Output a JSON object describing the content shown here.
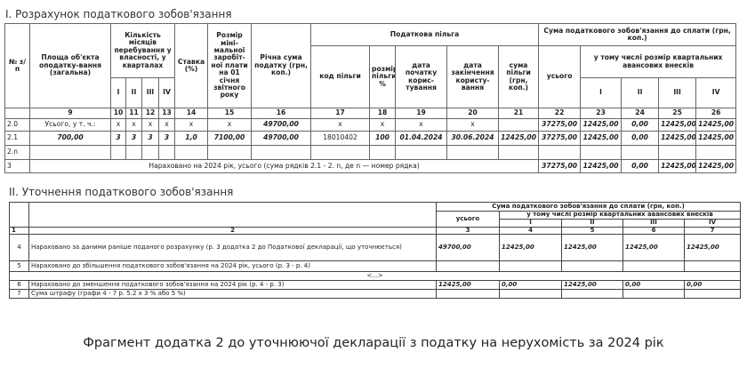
{
  "section1": {
    "title": "I. Розрахунок податкового зобов'язання",
    "headers": {
      "num": "№ з/п",
      "area": "Площа об'єкта оподатку-вання (загальна)",
      "months": "Кількість місяців перебування у власності, у кварталах",
      "q": [
        "I",
        "II",
        "III",
        "IV"
      ],
      "rate": "Ставка (%)",
      "minwage": "Розмір міні-мальної заробіт-ної плати на 01 січня звітного року",
      "annual": "Річна сума податку (грн, коп.)",
      "benefit": "Податкова пільга",
      "ben_code": "код пільги",
      "ben_pct": "розмір пільги, %",
      "ben_start": "дата початку корис-тування",
      "ben_end": "дата закінчення користу-вання",
      "ben_sum": "сума пільги (грн, коп.)",
      "payable": "Сума податкового зобов'язання до сплати (грн, коп.)",
      "total": "усього",
      "incl": "у тому числі розмір квартальних авансових внесків"
    },
    "colnums": [
      "9",
      "10",
      "11",
      "12",
      "13",
      "14",
      "15",
      "16",
      "17",
      "18",
      "19",
      "20",
      "21",
      "22",
      "23",
      "24",
      "25",
      "26"
    ],
    "rows": [
      {
        "n": "2.0",
        "c": [
          "Усього, у т. ч.:",
          "x",
          "x",
          "x",
          "x",
          "x",
          "x",
          "49700,00",
          "x",
          "x",
          "x",
          "x",
          "",
          "37275,00",
          "12425,00",
          "0,00",
          "12425,00",
          "12425,00"
        ]
      },
      {
        "n": "2.1",
        "c": [
          "700,00",
          "3",
          "3",
          "3",
          "3",
          "1,0",
          "7100,00",
          "49700,00",
          "18010402",
          "100",
          "01.04.2024",
          "30.06.2024",
          "12425,00",
          "37275,00",
          "12425,00",
          "0,00",
          "12425,00",
          "12425,00"
        ]
      },
      {
        "n": "2.n",
        "c": [
          "",
          "",
          "",
          "",
          "",
          "",
          "",
          "",
          "",
          "",
          "",
          "",
          "",
          "",
          "",
          "",
          "",
          ""
        ]
      }
    ],
    "row3": {
      "n": "3",
      "label": "Нараховано на 2024 рік, усього (сума рядків 2.1 - 2. n, де n — номер рядка)",
      "v": [
        "37275,00",
        "12425,00",
        "0,00",
        "12425,00",
        "12425,00"
      ]
    }
  },
  "section2": {
    "title": "II. Уточнення податкового зобов'язання",
    "headers": {
      "payable": "Сума податкового зобов'язання до сплати (грн, коп.)",
      "total": "усього",
      "incl": "у тому числі розмір квартальних авансових внесків",
      "q": [
        "I",
        "II",
        "III",
        "IV"
      ]
    },
    "colnums": [
      "1",
      "2",
      "3",
      "4",
      "5",
      "6",
      "7"
    ],
    "rows": [
      {
        "n": "4",
        "label": "Нараховано за даними раніше поданого розрахунку (р. 3 додатка 2 до Податкової декларації, що уточнюється)",
        "v": [
          "49700,00",
          "12425,00",
          "12425,00",
          "12425,00",
          "12425,00"
        ]
      },
      {
        "n": "5",
        "label": "Нараховано до збільшення податкового зобов'язання на 2024 рік, усього (р. 3 - р. 4)",
        "v": [
          "",
          "",
          "",
          "",
          ""
        ]
      },
      {
        "n": "6",
        "label": "Нараховано до зменшення податкового зобов'язання на 2024 рік (р. 4 - р. 3)",
        "v": [
          "12425,00",
          "0,00",
          "12425,00",
          "0,00",
          "0,00"
        ]
      },
      {
        "n": "7",
        "label": "Сума штрафу (графи 4 - 7 р. 5.2 х 3 % або 5 %)",
        "v": [
          "",
          "",
          "",
          "",
          ""
        ]
      }
    ],
    "ellipsis": "<...>"
  },
  "caption": "Фрагмент додатка 2 до уточнюючої декларації з податку на нерухомість за 2024 рік"
}
